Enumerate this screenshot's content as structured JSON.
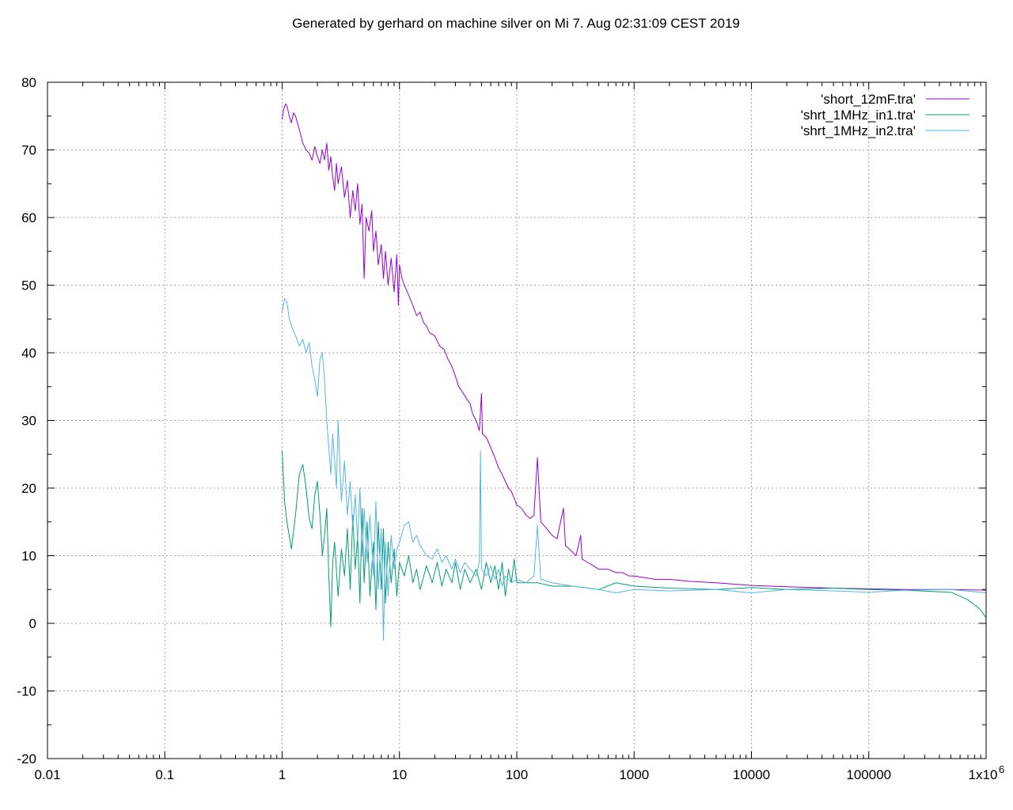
{
  "chart_data": {
    "type": "line",
    "title": "Generated by gerhard on machine silver on Mi 7. Aug 02:31:09 CEST 2019",
    "xlabel": "",
    "ylabel": "",
    "x_scale": "log",
    "xlim": [
      0.01,
      1000000
    ],
    "ylim": [
      -20,
      80
    ],
    "grid": true,
    "legend_position": "top-right",
    "x_ticks": [
      {
        "value": 0.01,
        "label": "0.01"
      },
      {
        "value": 0.1,
        "label": "0.1"
      },
      {
        "value": 1,
        "label": "1"
      },
      {
        "value": 10,
        "label": "10"
      },
      {
        "value": 100,
        "label": "100"
      },
      {
        "value": 1000,
        "label": "1000"
      },
      {
        "value": 10000,
        "label": "10000"
      },
      {
        "value": 100000,
        "label": "100000"
      },
      {
        "value": 1000000,
        "label": "1x10",
        "exponent": "6"
      }
    ],
    "y_ticks": [
      {
        "value": 80,
        "label": "80"
      },
      {
        "value": 70,
        "label": "70"
      },
      {
        "value": 60,
        "label": "60"
      },
      {
        "value": 50,
        "label": "50"
      },
      {
        "value": 40,
        "label": "40"
      },
      {
        "value": 30,
        "label": "30"
      },
      {
        "value": 20,
        "label": "20"
      },
      {
        "value": 10,
        "label": "10"
      },
      {
        "value": 0,
        "label": "0"
      },
      {
        "value": -10,
        "label": "-10"
      },
      {
        "value": -20,
        "label": "-20"
      }
    ],
    "series": [
      {
        "name": "'short_12mF.tra'",
        "color": "#9400d3",
        "points": [
          [
            1.0,
            74.5
          ],
          [
            1.03,
            76.0
          ],
          [
            1.07,
            76.8
          ],
          [
            1.1,
            76.5
          ],
          [
            1.15,
            75.0
          ],
          [
            1.2,
            74.0
          ],
          [
            1.25,
            75.5
          ],
          [
            1.3,
            75.0
          ],
          [
            1.4,
            73.0
          ],
          [
            1.5,
            71.0
          ],
          [
            1.6,
            70.0
          ],
          [
            1.7,
            69.5
          ],
          [
            1.8,
            68.5
          ],
          [
            1.9,
            70.5
          ],
          [
            2.0,
            69.0
          ],
          [
            2.1,
            68.0
          ],
          [
            2.2,
            70.0
          ],
          [
            2.3,
            68.5
          ],
          [
            2.4,
            71.0
          ],
          [
            2.5,
            67.0
          ],
          [
            2.6,
            69.0
          ],
          [
            2.7,
            66.0
          ],
          [
            2.8,
            64.0
          ],
          [
            2.9,
            68.0
          ],
          [
            3.0,
            65.0
          ],
          [
            3.2,
            67.5
          ],
          [
            3.4,
            63.0
          ],
          [
            3.6,
            65.5
          ],
          [
            3.8,
            60.0
          ],
          [
            4.0,
            64.0
          ],
          [
            4.2,
            61.0
          ],
          [
            4.4,
            65.0
          ],
          [
            4.6,
            59.0
          ],
          [
            4.8,
            62.0
          ],
          [
            5.0,
            51.0
          ],
          [
            5.2,
            60.0
          ],
          [
            5.5,
            58.0
          ],
          [
            5.8,
            61.0
          ],
          [
            6.0,
            55.0
          ],
          [
            6.3,
            58.0
          ],
          [
            6.6,
            53.0
          ],
          [
            7.0,
            56.0
          ],
          [
            7.3,
            51.0
          ],
          [
            7.6,
            55.0
          ],
          [
            8.0,
            50.0
          ],
          [
            8.5,
            54.0
          ],
          [
            9.0,
            49.0
          ],
          [
            9.5,
            54.5
          ],
          [
            9.8,
            47.0
          ],
          [
            10.0,
            53.0
          ],
          [
            10.5,
            51.0
          ],
          [
            11,
            50.0
          ],
          [
            12,
            48.5
          ],
          [
            13,
            47.0
          ],
          [
            14,
            45.5
          ],
          [
            15,
            46.0
          ],
          [
            16,
            44.5
          ],
          [
            17,
            44.0
          ],
          [
            18,
            43.0
          ],
          [
            20,
            42.5
          ],
          [
            22,
            41.0
          ],
          [
            24,
            40.5
          ],
          [
            26,
            39.0
          ],
          [
            28,
            38.0
          ],
          [
            30,
            36.5
          ],
          [
            32,
            35.0
          ],
          [
            35,
            34.0
          ],
          [
            38,
            33.0
          ],
          [
            40,
            32.5
          ],
          [
            42,
            31.0
          ],
          [
            45,
            30.0
          ],
          [
            48,
            28.5
          ],
          [
            50,
            34.0
          ],
          [
            51,
            28.0
          ],
          [
            55,
            27.5
          ],
          [
            60,
            26.0
          ],
          [
            65,
            24.5
          ],
          [
            70,
            23.0
          ],
          [
            75,
            22.0
          ],
          [
            80,
            21.0
          ],
          [
            85,
            20.0
          ],
          [
            90,
            19.5
          ],
          [
            95,
            18.5
          ],
          [
            100,
            17.5
          ],
          [
            110,
            17.0
          ],
          [
            120,
            16.0
          ],
          [
            130,
            15.5
          ],
          [
            140,
            16.0
          ],
          [
            150,
            24.5
          ],
          [
            160,
            15.0
          ],
          [
            180,
            14.0
          ],
          [
            200,
            13.0
          ],
          [
            220,
            12.5
          ],
          [
            250,
            17.0
          ],
          [
            260,
            11.5
          ],
          [
            280,
            11.0
          ],
          [
            300,
            10.5
          ],
          [
            320,
            10.0
          ],
          [
            350,
            13.0
          ],
          [
            360,
            9.5
          ],
          [
            400,
            9.0
          ],
          [
            450,
            8.5
          ],
          [
            500,
            8.0
          ],
          [
            600,
            8.0
          ],
          [
            700,
            7.5
          ],
          [
            800,
            7.5
          ],
          [
            900,
            7.0
          ],
          [
            1000,
            7.0
          ],
          [
            1500,
            6.5
          ],
          [
            2000,
            6.5
          ],
          [
            3000,
            6.2
          ],
          [
            5000,
            6.0
          ],
          [
            7000,
            5.8
          ],
          [
            10000,
            5.6
          ],
          [
            20000,
            5.4
          ],
          [
            50000,
            5.2
          ],
          [
            100000,
            5.1
          ],
          [
            200000,
            5.0
          ],
          [
            500000,
            5.0
          ],
          [
            1000000,
            4.9
          ]
        ]
      },
      {
        "name": "'shrt_1MHz_in1.tra'",
        "color": "#009e73",
        "points": [
          [
            1.0,
            25.5
          ],
          [
            1.05,
            18.0
          ],
          [
            1.1,
            15.0
          ],
          [
            1.2,
            11.0
          ],
          [
            1.3,
            16.0
          ],
          [
            1.4,
            22.0
          ],
          [
            1.5,
            23.5
          ],
          [
            1.6,
            20.0
          ],
          [
            1.7,
            15.5
          ],
          [
            1.8,
            14.0
          ],
          [
            1.9,
            19.0
          ],
          [
            2.0,
            21.0
          ],
          [
            2.1,
            16.0
          ],
          [
            2.2,
            10.0
          ],
          [
            2.3,
            13.0
          ],
          [
            2.4,
            17.0
          ],
          [
            2.5,
            7.0
          ],
          [
            2.6,
            -0.5
          ],
          [
            2.7,
            9.0
          ],
          [
            2.8,
            12.0
          ],
          [
            3.0,
            4.0
          ],
          [
            3.2,
            11.0
          ],
          [
            3.4,
            7.0
          ],
          [
            3.6,
            14.0
          ],
          [
            3.8,
            5.0
          ],
          [
            4.0,
            16.0
          ],
          [
            4.2,
            8.0
          ],
          [
            4.4,
            13.0
          ],
          [
            4.6,
            3.0
          ],
          [
            4.8,
            17.0
          ],
          [
            5.0,
            6.0
          ],
          [
            5.3,
            15.0
          ],
          [
            5.6,
            4.0
          ],
          [
            6.0,
            12.0
          ],
          [
            6.3,
            2.0
          ],
          [
            6.6,
            15.0
          ],
          [
            7.0,
            5.0
          ],
          [
            7.3,
            14.0
          ],
          [
            7.6,
            3.0
          ],
          [
            8.0,
            12.0
          ],
          [
            8.5,
            6.0
          ],
          [
            9.0,
            11.0
          ],
          [
            9.5,
            4.0
          ],
          [
            10,
            9.0
          ],
          [
            11,
            7.0
          ],
          [
            12,
            10.0
          ],
          [
            13,
            6.0
          ],
          [
            14,
            8.0
          ],
          [
            15,
            5.0
          ],
          [
            17,
            8.5
          ],
          [
            19,
            6.0
          ],
          [
            21,
            9.0
          ],
          [
            23,
            5.5
          ],
          [
            25,
            8.0
          ],
          [
            28,
            6.0
          ],
          [
            30,
            9.0
          ],
          [
            33,
            5.0
          ],
          [
            36,
            8.0
          ],
          [
            40,
            6.0
          ],
          [
            45,
            8.0
          ],
          [
            50,
            5.0
          ],
          [
            55,
            9.0
          ],
          [
            60,
            6.0
          ],
          [
            65,
            8.5
          ],
          [
            70,
            5.0
          ],
          [
            75,
            9.0
          ],
          [
            80,
            4.0
          ],
          [
            85,
            8.0
          ],
          [
            90,
            6.0
          ],
          [
            95,
            9.5
          ],
          [
            100,
            6.0
          ],
          [
            150,
            6.0
          ],
          [
            200,
            5.5
          ],
          [
            300,
            5.5
          ],
          [
            500,
            5.0
          ],
          [
            700,
            6.0
          ],
          [
            1000,
            5.5
          ],
          [
            2000,
            5.2
          ],
          [
            5000,
            5.0
          ],
          [
            10000,
            5.3
          ],
          [
            20000,
            5.0
          ],
          [
            50000,
            5.2
          ],
          [
            100000,
            5.0
          ],
          [
            200000,
            4.9
          ],
          [
            500000,
            4.6
          ],
          [
            700000,
            3.5
          ],
          [
            900000,
            2.0
          ],
          [
            1000000,
            0.8
          ]
        ]
      },
      {
        "name": "'shrt_1MHz_in2.tra'",
        "color": "#56b4e9",
        "points": [
          [
            1.0,
            46.0
          ],
          [
            1.05,
            48.0
          ],
          [
            1.1,
            47.5
          ],
          [
            1.15,
            45.0
          ],
          [
            1.2,
            44.0
          ],
          [
            1.3,
            42.5
          ],
          [
            1.4,
            41.0
          ],
          [
            1.5,
            42.0
          ],
          [
            1.6,
            40.0
          ],
          [
            1.7,
            41.5
          ],
          [
            1.8,
            38.0
          ],
          [
            1.9,
            36.0
          ],
          [
            2.0,
            33.5
          ],
          [
            2.1,
            39.0
          ],
          [
            2.2,
            40.0
          ],
          [
            2.3,
            36.0
          ],
          [
            2.4,
            30.0
          ],
          [
            2.5,
            26.0
          ],
          [
            2.6,
            22.0
          ],
          [
            2.7,
            28.0
          ],
          [
            2.8,
            24.0
          ],
          [
            2.9,
            20.0
          ],
          [
            3.0,
            30.0
          ],
          [
            3.2,
            18.0
          ],
          [
            3.4,
            24.0
          ],
          [
            3.6,
            16.0
          ],
          [
            3.8,
            21.0
          ],
          [
            4.0,
            14.0
          ],
          [
            4.2,
            19.0
          ],
          [
            4.4,
            12.0
          ],
          [
            4.6,
            20.0
          ],
          [
            4.8,
            10.0
          ],
          [
            5.0,
            17.0
          ],
          [
            5.3,
            9.0
          ],
          [
            5.6,
            16.0
          ],
          [
            6.0,
            7.0
          ],
          [
            6.3,
            18.0
          ],
          [
            6.6,
            5.0
          ],
          [
            7.0,
            14.0
          ],
          [
            7.3,
            -2.5
          ],
          [
            7.6,
            12.0
          ],
          [
            8.0,
            4.0
          ],
          [
            8.5,
            13.0
          ],
          [
            9.0,
            8.0
          ],
          [
            9.5,
            11.0
          ],
          [
            10,
            12.0
          ],
          [
            11,
            14.5
          ],
          [
            12,
            15.0
          ],
          [
            13,
            12.0
          ],
          [
            14,
            13.0
          ],
          [
            15,
            11.5
          ],
          [
            17,
            10.0
          ],
          [
            19,
            9.5
          ],
          [
            21,
            11.0
          ],
          [
            23,
            9.0
          ],
          [
            25,
            10.0
          ],
          [
            28,
            8.0
          ],
          [
            30,
            9.5
          ],
          [
            33,
            7.5
          ],
          [
            36,
            9.0
          ],
          [
            40,
            8.0
          ],
          [
            45,
            7.0
          ],
          [
            48,
            9.0
          ],
          [
            49,
            25.5
          ],
          [
            50,
            8.0
          ],
          [
            55,
            7.0
          ],
          [
            60,
            8.5
          ],
          [
            65,
            6.5
          ],
          [
            70,
            8.0
          ],
          [
            75,
            5.5
          ],
          [
            80,
            7.0
          ],
          [
            90,
            6.0
          ],
          [
            100,
            6.5
          ],
          [
            120,
            6.0
          ],
          [
            140,
            7.0
          ],
          [
            150,
            14.5
          ],
          [
            160,
            6.5
          ],
          [
            200,
            6.0
          ],
          [
            300,
            5.5
          ],
          [
            500,
            5.0
          ],
          [
            700,
            4.5
          ],
          [
            1000,
            5.0
          ],
          [
            2000,
            4.8
          ],
          [
            5000,
            5.0
          ],
          [
            10000,
            4.5
          ],
          [
            20000,
            5.0
          ],
          [
            50000,
            4.8
          ],
          [
            100000,
            4.6
          ],
          [
            200000,
            4.9
          ],
          [
            500000,
            5.0
          ],
          [
            1000000,
            4.5
          ]
        ]
      }
    ]
  }
}
